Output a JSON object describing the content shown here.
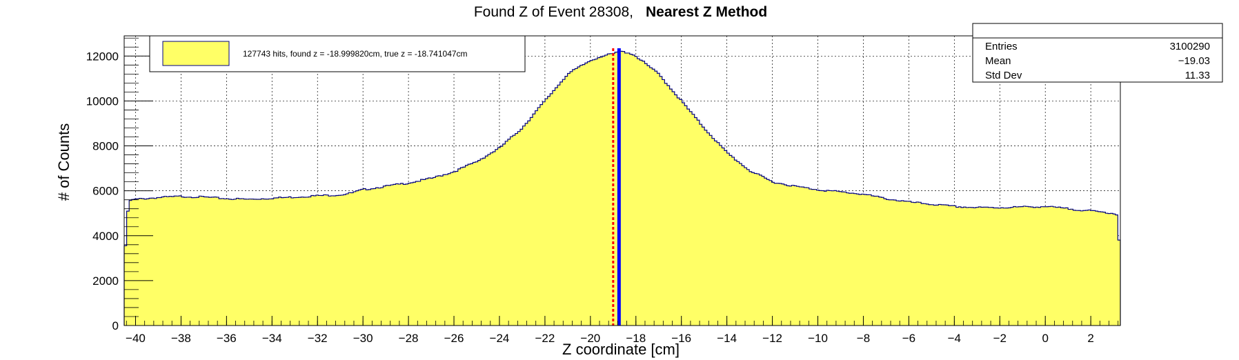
{
  "chart_data": {
    "type": "histogram",
    "title": "Found Z of Event 28308,",
    "subtitle": "Nearest Z Method",
    "xlabel": "Z coordinate [cm]",
    "ylabel": "# of Counts",
    "xlim": [
      -40.5,
      3.3
    ],
    "ylim": [
      0,
      12900
    ],
    "grid": true,
    "x_ticks": [
      -40,
      -38,
      -36,
      -34,
      -32,
      -30,
      -28,
      -26,
      -24,
      -22,
      -20,
      -18,
      -16,
      -14,
      -12,
      -10,
      -8,
      -6,
      -4,
      -2,
      0,
      2
    ],
    "y_ticks": [
      0,
      2000,
      4000,
      6000,
      8000,
      10000,
      12000
    ],
    "fill_color": "#ffff66",
    "line_color": "#000080",
    "profile": {
      "z": [
        -40.5,
        -40.3,
        -40.0,
        -39.0,
        -38.0,
        -37.0,
        -36.0,
        -35.0,
        -34.0,
        -33.0,
        -32.0,
        -31.0,
        -30.5,
        -30.0,
        -29.0,
        -28.0,
        -27.0,
        -26.0,
        -25.0,
        -24.0,
        -23.0,
        -22.0,
        -21.0,
        -20.0,
        -19.5,
        -19.0,
        -18.7,
        -18.3,
        -18.0,
        -17.0,
        -16.0,
        -15.0,
        -14.0,
        -13.0,
        -12.0,
        -11.0,
        -10.0,
        -9.0,
        -8.0,
        -7.0,
        -6.0,
        -5.0,
        -4.0,
        -3.0,
        -2.0,
        -1.0,
        0.0,
        1.0,
        2.0,
        3.0,
        3.2,
        3.3
      ],
      "counts": [
        2800,
        5550,
        5620,
        5700,
        5750,
        5720,
        5650,
        5620,
        5670,
        5720,
        5780,
        5820,
        5900,
        6050,
        6200,
        6350,
        6550,
        6850,
        7300,
        7900,
        8800,
        10000,
        11200,
        11800,
        12000,
        12100,
        12200,
        12150,
        12000,
        11200,
        10000,
        8800,
        7700,
        6900,
        6400,
        6200,
        6050,
        5950,
        5850,
        5650,
        5500,
        5400,
        5300,
        5250,
        5250,
        5280,
        5300,
        5200,
        5100,
        5000,
        4900,
        2500
      ]
    },
    "vertical_lines": [
      {
        "x": -18.741047,
        "color": "#0000ff",
        "style": "solid"
      },
      {
        "x": -18.99982,
        "color": "#ff0000",
        "style": "dotted"
      }
    ],
    "legend": {
      "position": "top-left",
      "entries": [
        {
          "label": "127743 hits, found z = -18.999820cm, true z = -18.741047cm",
          "color": "#ffff66"
        }
      ]
    },
    "stats": {
      "rows": [
        {
          "label": "Entries",
          "value": "3100290"
        },
        {
          "label": "Mean",
          "value": "−19.03"
        },
        {
          "label": "Std Dev",
          "value": "11.33"
        }
      ]
    }
  }
}
